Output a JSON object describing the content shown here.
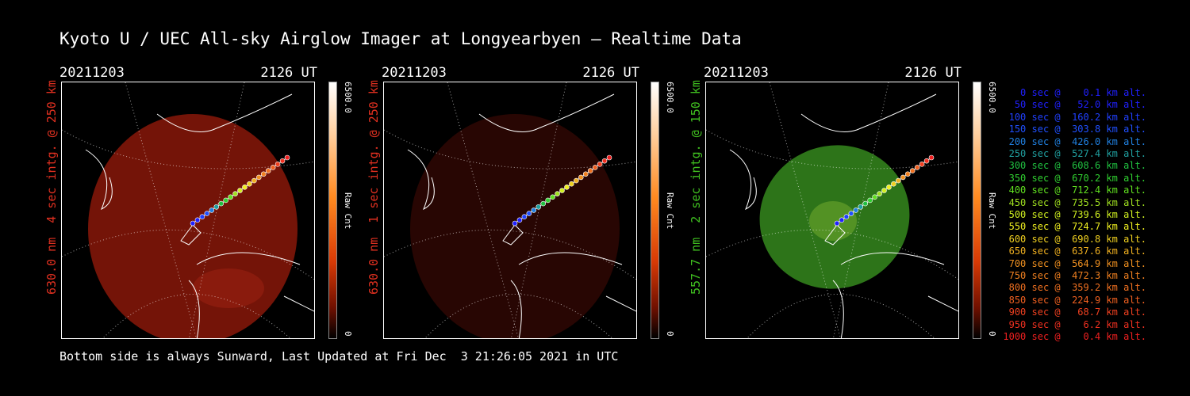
{
  "title": "Kyoto U / UEC All-sky Airglow Imager at Longyearbyen — Realtime Data",
  "footer": "Bottom side is always Sunward, Last Updated at Fri Dec  3 21:26:05 2021 in UTC",
  "colors": {
    "red_label": "#e03020",
    "green_label": "#40c020",
    "red_image": "#8a1a0a",
    "green_image": "#2e7d18"
  },
  "chart_data": [
    {
      "type": "heatmap",
      "date": "20211203",
      "time": "2126 UT",
      "side_label": "630.0 nm  4 sec intg. @ 250 km",
      "colorbar": {
        "max": "6500.0",
        "min": "0",
        "unit": "Raw Cnt"
      }
    },
    {
      "type": "heatmap",
      "date": "20211203",
      "time": "2126 UT",
      "side_label": "630.0 nm  1 sec intg. @ 250 km",
      "colorbar": {
        "max": "6500.0",
        "min": "0",
        "unit": "Raw Cnt"
      }
    },
    {
      "type": "heatmap",
      "date": "20211203",
      "time": "2126 UT",
      "side_label": "557.7 nm  2 sec intg. @ 150 km",
      "colorbar": {
        "max": "6500.0",
        "min": "0",
        "unit": "Raw Cnt"
      }
    }
  ],
  "trajectory_legend": [
    {
      "text": "   0 sec @    0.1 km alt.",
      "color": "#2020ff"
    },
    {
      "text": "  50 sec @   52.0 km alt.",
      "color": "#2020ff"
    },
    {
      "text": " 100 sec @  160.2 km alt.",
      "color": "#2040ff"
    },
    {
      "text": " 150 sec @  303.8 km alt.",
      "color": "#2050ff"
    },
    {
      "text": " 200 sec @  426.0 km alt.",
      "color": "#2080e0"
    },
    {
      "text": " 250 sec @  527.4 km alt.",
      "color": "#20a0a0"
    },
    {
      "text": " 300 sec @  608.6 km alt.",
      "color": "#20c040"
    },
    {
      "text": " 350 sec @  670.2 km alt.",
      "color": "#30d030"
    },
    {
      "text": " 400 sec @  712.4 km alt.",
      "color": "#60e020"
    },
    {
      "text": " 450 sec @  735.5 km alt.",
      "color": "#a0e020"
    },
    {
      "text": " 500 sec @  739.6 km alt.",
      "color": "#d0f020"
    },
    {
      "text": " 550 sec @  724.7 km alt.",
      "color": "#f0f020"
    },
    {
      "text": " 600 sec @  690.8 km alt.",
      "color": "#f0d020"
    },
    {
      "text": " 650 sec @  637.6 km alt.",
      "color": "#f0b020"
    },
    {
      "text": " 700 sec @  564.9 km alt.",
      "color": "#f09020"
    },
    {
      "text": " 750 sec @  472.3 km alt.",
      "color": "#f08020"
    },
    {
      "text": " 800 sec @  359.2 km alt.",
      "color": "#f07020"
    },
    {
      "text": " 850 sec @  224.9 km alt.",
      "color": "#f06020"
    },
    {
      "text": " 900 sec @   68.7 km alt.",
      "color": "#f04020"
    },
    {
      "text": " 950 sec @    6.2 km alt.",
      "color": "#f03020"
    },
    {
      "text": "1000 sec @    0.4 km alt.",
      "color": "#f02020"
    }
  ]
}
